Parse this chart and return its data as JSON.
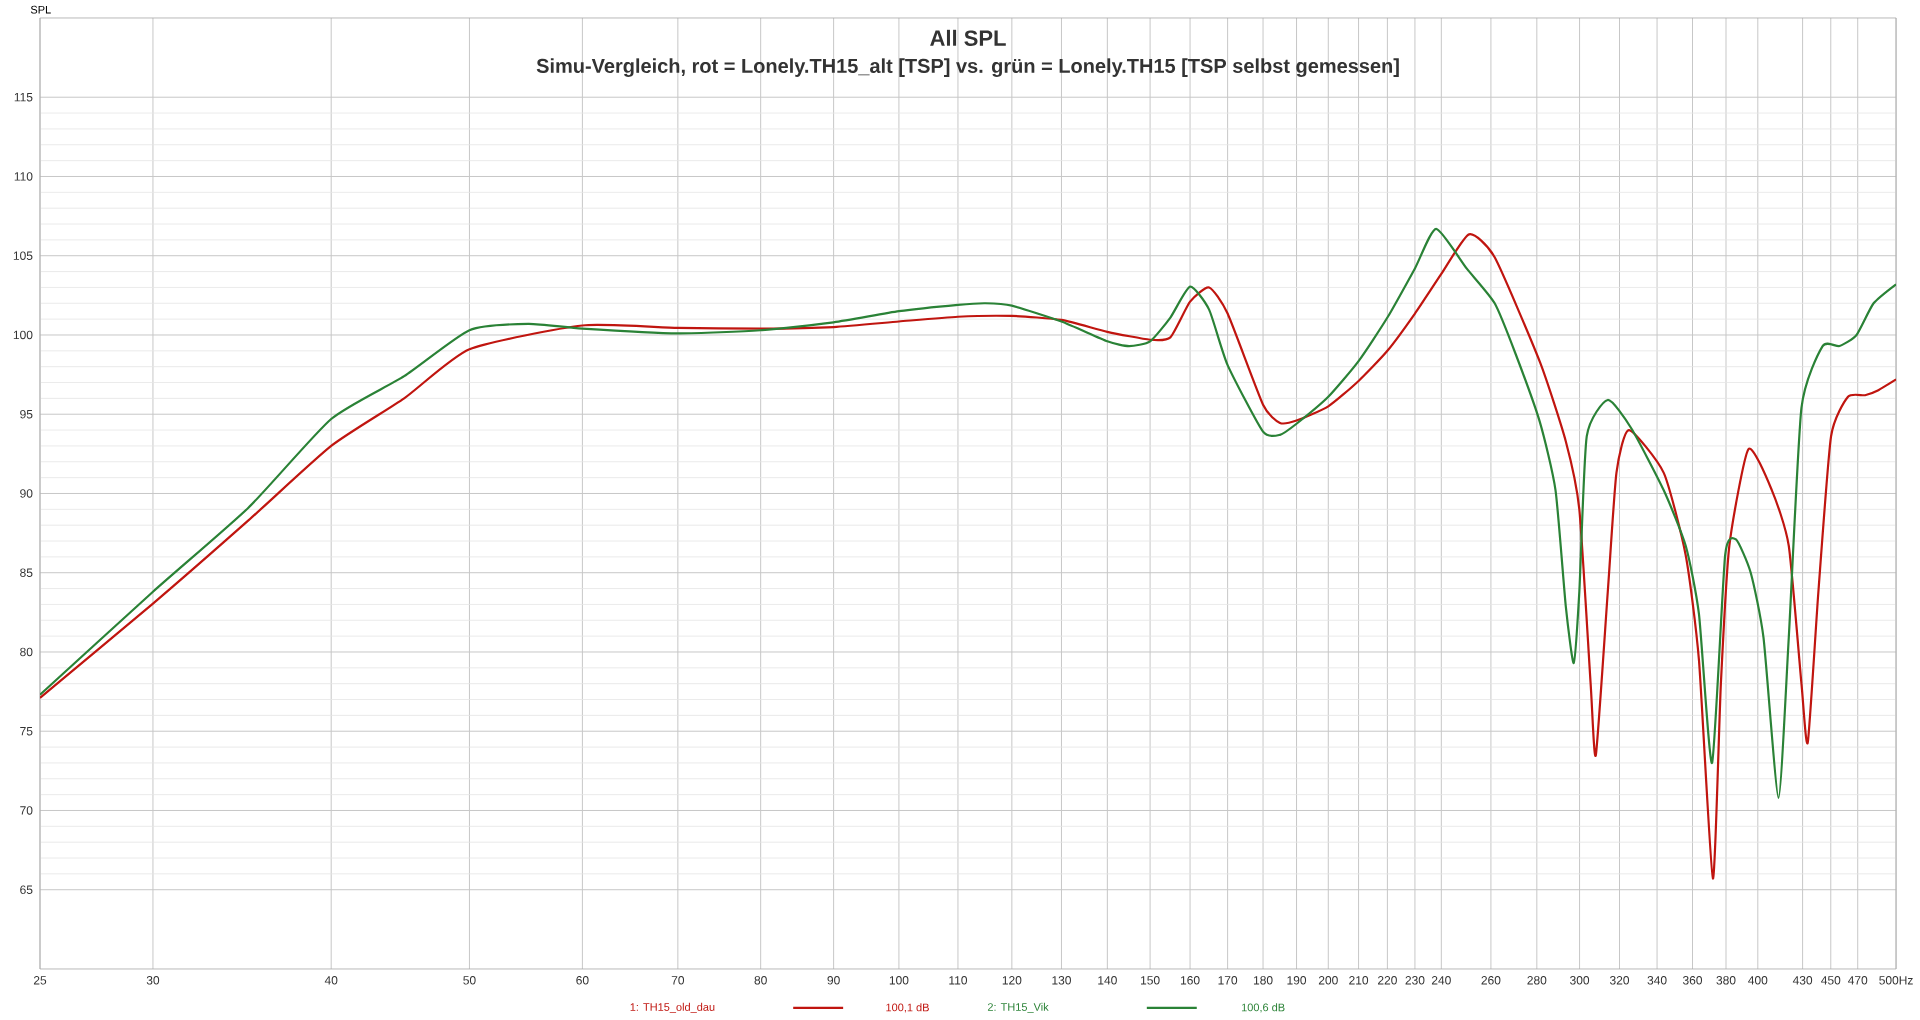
{
  "chart_data": {
    "type": "line",
    "title": "All SPL",
    "subtitle": "Simu-Vergleich, rot = Lonely.TH15_alt [TSP] vs. grün = Lonely.TH15 [TSP selbst gemessen]",
    "ylabel": "SPL",
    "log": "x",
    "grid": true,
    "legend": "bottom",
    "line_style": "solid",
    "marker": "none",
    "xlim": [
      25,
      500
    ],
    "ylim": [
      60,
      120
    ],
    "xticks": [
      25,
      30,
      40,
      50,
      60,
      70,
      80,
      90,
      100,
      110,
      120,
      130,
      140,
      150,
      160,
      170,
      180,
      190,
      200,
      210,
      220,
      230,
      240,
      260,
      280,
      300,
      320,
      340,
      360,
      380,
      400,
      430,
      450,
      470,
      {
        "value": 500,
        "label": "500Hz"
      }
    ],
    "yticks": [
      65,
      70,
      75,
      80,
      85,
      90,
      95,
      100,
      105,
      110,
      115
    ],
    "annotations": [
      "100,1 dB",
      "100,6 dB"
    ],
    "series": [
      {
        "name": "1: TH15_old_dau",
        "color": "#c0150f",
        "x": [
          25,
          30,
          35,
          40,
          45,
          50,
          60,
          70,
          80,
          90,
          100,
          110,
          120,
          130,
          140,
          150,
          155,
          160,
          165,
          170,
          180,
          185,
          190,
          200,
          210,
          220,
          230,
          240,
          251,
          261.6,
          281.4,
          293.4,
          299.9,
          305.4,
          308,
          314,
          318.4,
          324.9,
          343.7,
          356.1,
          363.8,
          372.1,
          376.9,
          382.1,
          394.1,
          409.2,
          420.5,
          429.2,
          433.6,
          441.1,
          450.2,
          462.7,
          475.6,
          485.5,
          500
        ],
        "values": [
          77.1,
          83.05,
          88.3,
          93.0,
          96.0,
          99.1,
          100.6,
          100.45,
          100.4,
          100.5,
          100.85,
          101.15,
          101.2,
          100.95,
          100.2,
          99.7,
          99.85,
          102.1,
          103.0,
          101.35,
          95.6,
          94.45,
          94.6,
          95.5,
          97.1,
          99.0,
          101.35,
          103.85,
          106.35,
          104.9,
          98.3,
          93.3,
          89.0,
          78.0,
          73.5,
          83.8,
          91.3,
          94.0,
          91.3,
          86.1,
          79.5,
          65.7,
          78.0,
          86.7,
          92.8,
          90.2,
          86.7,
          78.0,
          74.3,
          83.8,
          93.6,
          96.1,
          96.2,
          96.5,
          97.2
        ]
      },
      {
        "name": "2: TH15_Vik",
        "color": "#2a8236",
        "x": [
          25,
          30,
          35,
          40,
          45,
          50,
          55,
          60,
          70,
          80,
          90,
          100,
          110,
          115,
          120,
          130,
          140,
          145,
          150,
          155,
          160,
          165,
          170,
          180,
          185,
          190,
          200,
          210,
          220,
          230,
          238,
          250,
          261.6,
          270.6,
          281.4,
          288.6,
          293.4,
          297.2,
          299.9,
          303.5,
          314,
          326.2,
          343.7,
          356.1,
          363.8,
          371.6,
          379.5,
          386.2,
          395.5,
          403.7,
          413.6,
          420.5,
          429.2,
          444.1,
          456.4,
          469.1,
          482.2,
          500
        ],
        "values": [
          77.3,
          83.8,
          89.1,
          94.7,
          97.4,
          100.3,
          100.7,
          100.4,
          100.1,
          100.3,
          100.8,
          101.5,
          101.9,
          102.0,
          101.85,
          100.85,
          99.6,
          99.3,
          99.6,
          101.1,
          103.05,
          101.6,
          98.1,
          93.9,
          93.7,
          94.4,
          96.1,
          98.35,
          101.1,
          104.2,
          106.7,
          104.2,
          102.0,
          98.8,
          94.5,
          90.2,
          82.9,
          79.3,
          83.8,
          93.6,
          95.9,
          94.1,
          90.2,
          86.7,
          82.4,
          73.0,
          86.1,
          87.1,
          85.0,
          80.9,
          70.8,
          80.9,
          95.4,
          99.3,
          99.3,
          100.0,
          102.0,
          103.2
        ]
      }
    ]
  }
}
